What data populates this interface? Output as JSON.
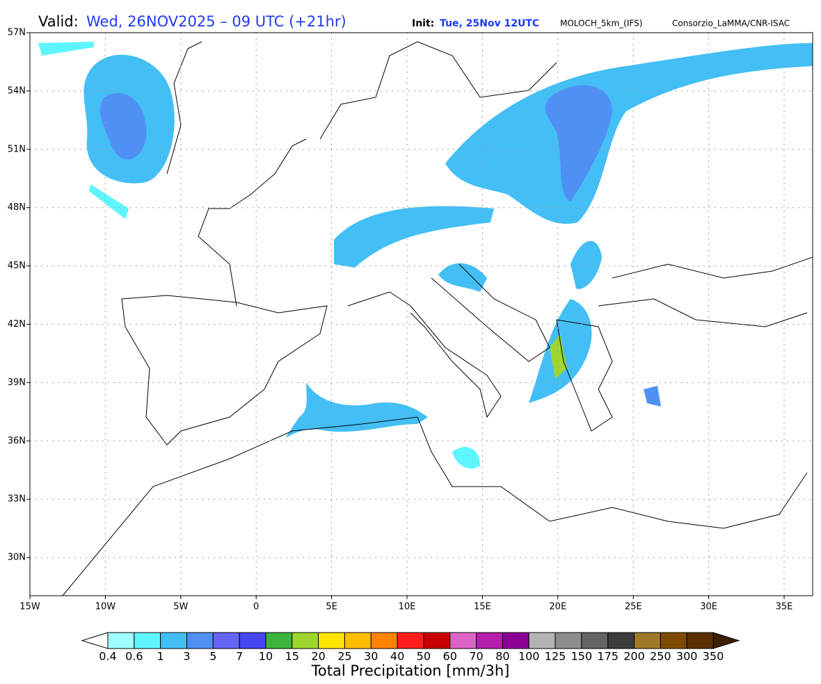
{
  "header": {
    "valid_label": "Valid:",
    "valid_time": "Wed, 26NOV2025 – 09 UTC (+21hr)",
    "init_label": "Init:",
    "init_time": "Tue, 25Nov 12UTC",
    "model": "MOLOCH_5km_(IFS)",
    "credit": "Consorzio_LaMMA/CNR-ISAC"
  },
  "map": {
    "lat_labels": [
      "57N",
      "54N",
      "51N",
      "48N",
      "45N",
      "42N",
      "39N",
      "36N",
      "33N",
      "30N"
    ],
    "lon_labels": [
      "15W",
      "10W",
      "5W",
      "0",
      "5E",
      "10E",
      "15E",
      "20E",
      "25E",
      "30E",
      "35E"
    ]
  },
  "colorbar": {
    "labels": [
      "0.4",
      "0.6",
      "1",
      "3",
      "5",
      "7",
      "10",
      "15",
      "20",
      "25",
      "30",
      "40",
      "50",
      "60",
      "70",
      "80",
      "100",
      "125",
      "150",
      "175",
      "200",
      "250",
      "300",
      "350"
    ],
    "title": "Total Precipitation [mm/3h]"
  }
}
